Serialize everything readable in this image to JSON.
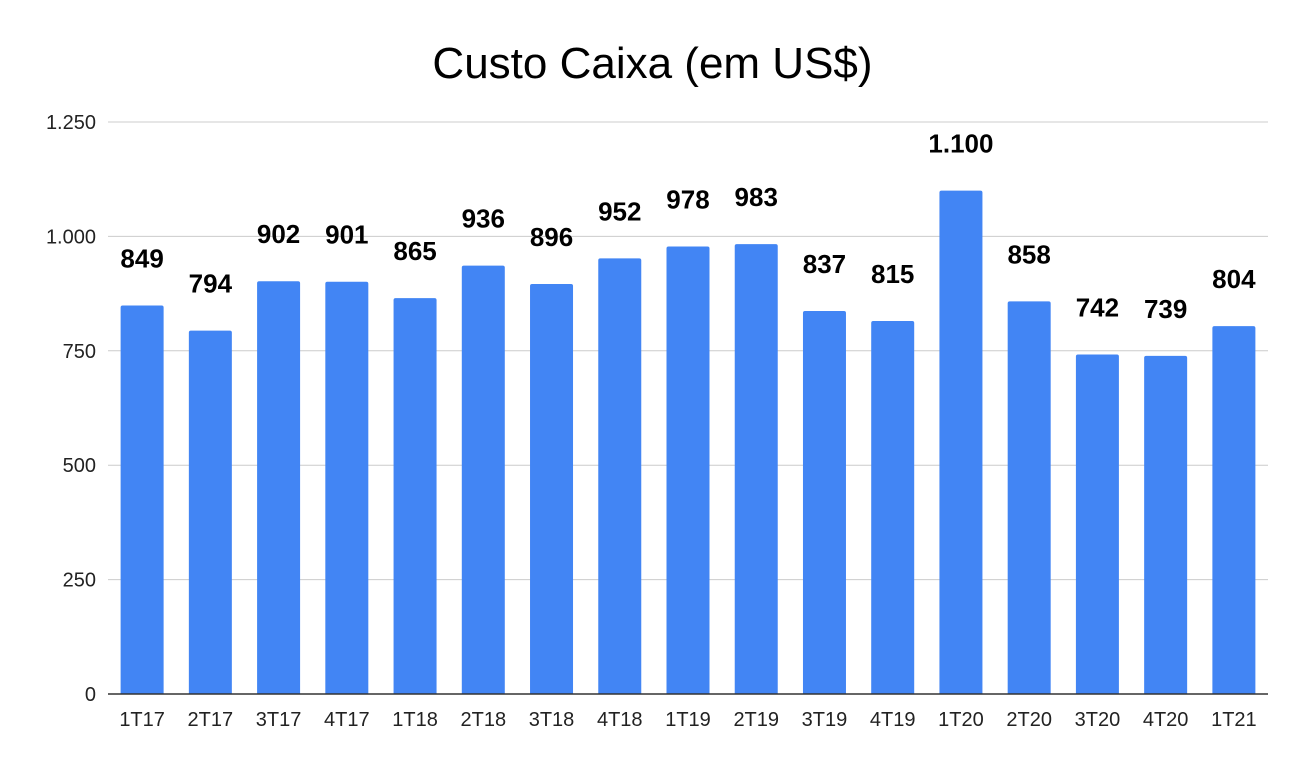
{
  "chart_data": {
    "type": "bar",
    "title": "Custo Caixa (em US$)",
    "xlabel": "",
    "ylabel": "",
    "categories": [
      "1T17",
      "2T17",
      "3T17",
      "4T17",
      "1T18",
      "2T18",
      "3T18",
      "4T18",
      "1T19",
      "2T19",
      "3T19",
      "4T19",
      "1T20",
      "2T20",
      "3T20",
      "4T20",
      "1T21"
    ],
    "values": [
      849,
      794,
      902,
      901,
      865,
      936,
      896,
      952,
      978,
      983,
      837,
      815,
      1100,
      858,
      742,
      739,
      804
    ],
    "data_labels": [
      "849",
      "794",
      "902",
      "901",
      "865",
      "936",
      "896",
      "952",
      "978",
      "983",
      "837",
      "815",
      "1.100",
      "858",
      "742",
      "739",
      "804"
    ],
    "ylim": [
      0,
      1250
    ],
    "yticks": [
      0,
      250,
      500,
      750,
      1000,
      1250
    ],
    "ytick_labels": [
      "0",
      "250",
      "500",
      "750",
      "1.000",
      "1.250"
    ],
    "grid": true,
    "legend": "none",
    "bar_color": "#4285f4",
    "grid_color": "#cccccc",
    "axis_color": "#333333"
  }
}
